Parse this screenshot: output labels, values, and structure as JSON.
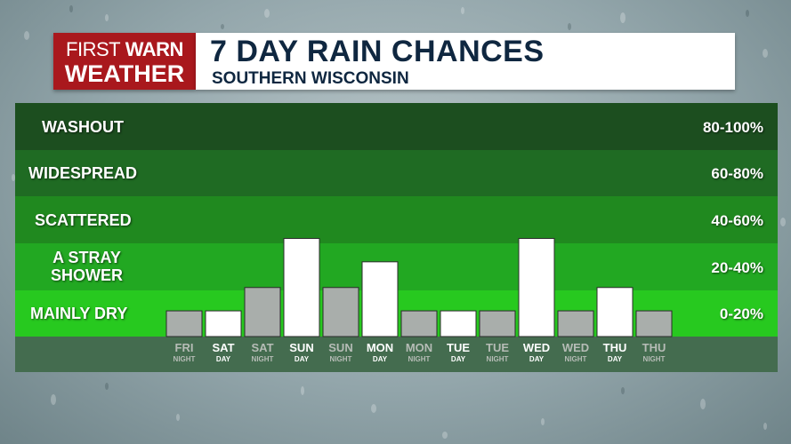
{
  "logo": {
    "line1_a": "FIRST",
    "line1_b": "WARN",
    "line2": "WEATHER"
  },
  "header": {
    "title": "7 DAY RAIN CHANCES",
    "subtitle": "SOUTHERN WISCONSIN"
  },
  "colors": {
    "bands": [
      "#1c4e1f",
      "#1f6b23",
      "#20891f",
      "#22a822",
      "#27c91f"
    ],
    "footer": "#446c4f",
    "day_bar": "#ffffff",
    "night_bar": "#a9aeab",
    "night_label": "#b6bcb6",
    "day_label": "#ffffff",
    "logo_red": "#a9181d",
    "title_navy": "#0f2740"
  },
  "chart_data": {
    "type": "bar",
    "title": "7 DAY RAIN CHANCES",
    "subtitle": "SOUTHERN WISCONSIN",
    "ylim": [
      0,
      100
    ],
    "categories": [
      {
        "day": "FRI",
        "period": "NIGHT"
      },
      {
        "day": "SAT",
        "period": "DAY"
      },
      {
        "day": "SAT",
        "period": "NIGHT"
      },
      {
        "day": "SUN",
        "period": "DAY"
      },
      {
        "day": "SUN",
        "period": "NIGHT"
      },
      {
        "day": "MON",
        "period": "DAY"
      },
      {
        "day": "MON",
        "period": "NIGHT"
      },
      {
        "day": "TUE",
        "period": "DAY"
      },
      {
        "day": "TUE",
        "period": "NIGHT"
      },
      {
        "day": "WED",
        "period": "DAY"
      },
      {
        "day": "WED",
        "period": "NIGHT"
      },
      {
        "day": "THU",
        "period": "DAY"
      },
      {
        "day": "THU",
        "period": "NIGHT"
      }
    ],
    "values": [
      11,
      11,
      21,
      42,
      21,
      32,
      11,
      11,
      11,
      42,
      11,
      21,
      11
    ],
    "categories_band": [
      {
        "label": "WASHOUT",
        "range": "80-100%",
        "min": 80,
        "max": 100
      },
      {
        "label": "WIDESPREAD",
        "range": "60-80%",
        "min": 60,
        "max": 80
      },
      {
        "label": "SCATTERED",
        "range": "40-60%",
        "min": 40,
        "max": 60
      },
      {
        "label": "A STRAY SHOWER",
        "label_line1": "A STRAY",
        "label_line2": "SHOWER",
        "range": "20-40%",
        "min": 20,
        "max": 40
      },
      {
        "label": "MAINLY DRY",
        "range": "0-20%",
        "min": 0,
        "max": 20
      }
    ]
  }
}
